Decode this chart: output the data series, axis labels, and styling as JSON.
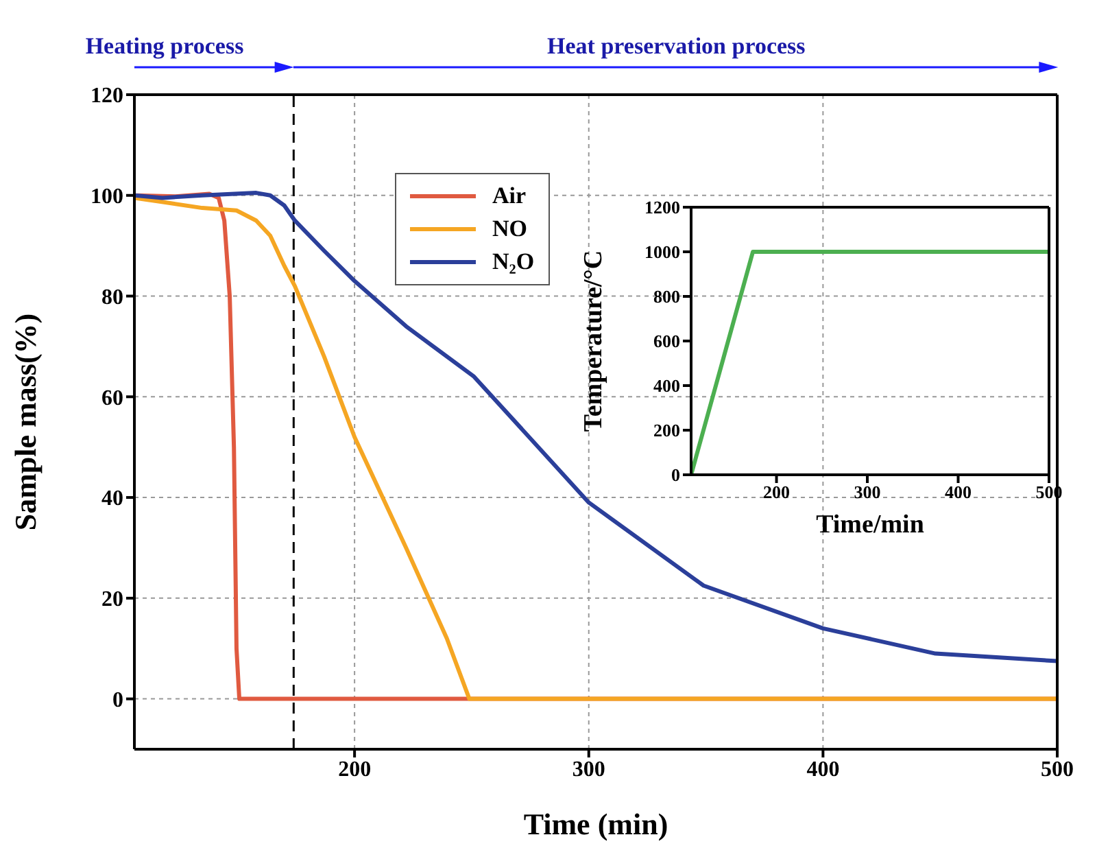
{
  "chart_data": [
    {
      "type": "line",
      "xlabel": "Time (min)",
      "ylabel": "Sample mass(%)",
      "xlim": [
        106,
        500
      ],
      "xticks": [
        200,
        300,
        400,
        500
      ],
      "ylim": [
        -10,
        120
      ],
      "yticks": [
        0,
        20,
        40,
        60,
        80,
        100,
        120
      ],
      "grid": true,
      "legend": "top",
      "line_style": "solid",
      "annotations": [
        "Heating process",
        "Heat preservation process"
      ],
      "ref_lines": [
        {
          "axis": "x",
          "value": 174,
          "color": "#000000",
          "line_style": "dashed"
        }
      ],
      "series": [
        {
          "name": "Air",
          "color": "#e05a40",
          "x": [
            106,
            123.6,
            138,
            142,
            144.4,
            146.7,
            148.5,
            149.6,
            150.8,
            500
          ],
          "values": [
            100,
            99.8,
            100.3,
            99.5,
            95,
            80,
            50,
            10,
            0,
            0
          ]
        },
        {
          "name": "NO",
          "color": "#f5a623",
          "x": [
            106,
            117.8,
            135,
            149.6,
            158,
            164,
            170,
            174.5,
            187,
            200,
            222,
            239.4,
            249,
            500
          ],
          "values": [
            99.5,
            98.7,
            97.5,
            97,
            95,
            92,
            86,
            82,
            68,
            52,
            30,
            12,
            0,
            0
          ]
        },
        {
          "name": "N₂O",
          "color": "#2b3f9a",
          "x": [
            106,
            118,
            135,
            158,
            164,
            170,
            174.5,
            187,
            200,
            222,
            251,
            300,
            349,
            400,
            448,
            500
          ],
          "values": [
            100,
            99.5,
            100,
            100.5,
            100,
            98,
            95,
            89,
            83,
            74,
            64,
            39,
            22.5,
            14,
            9,
            7.5
          ]
        }
      ]
    },
    {
      "type": "line",
      "xlabel": "Time/min",
      "ylabel": "Temperature/°C",
      "xlim": [
        106,
        500
      ],
      "xticks": [
        200,
        300,
        400,
        500
      ],
      "ylim": [
        0,
        1200
      ],
      "yticks": [
        0,
        200,
        400,
        600,
        800,
        1000,
        1200
      ],
      "line_style": "solid",
      "series": [
        {
          "color": "#4caf50",
          "x": [
            106,
            174,
            500
          ],
          "values": [
            0,
            1000,
            1000
          ]
        }
      ]
    }
  ]
}
